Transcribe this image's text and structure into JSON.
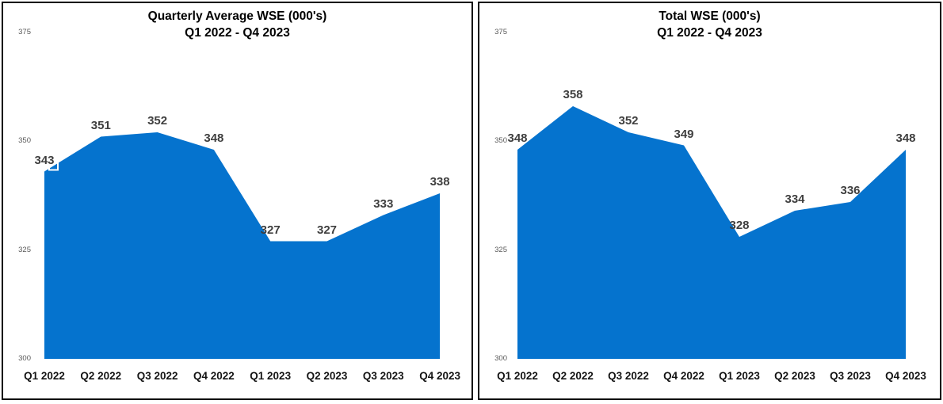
{
  "chart_data": [
    {
      "type": "area",
      "title": "Quarterly Average WSE (000's)",
      "subtitle": "Q1 2022 - Q4 2023",
      "categories": [
        "Q1 2022",
        "Q2 2022",
        "Q3 2022",
        "Q4 2022",
        "Q1 2023",
        "Q2 2023",
        "Q3 2023",
        "Q4 2023"
      ],
      "values": [
        343,
        351,
        352,
        348,
        327,
        327,
        333,
        338
      ],
      "ylim": [
        300,
        375
      ],
      "yticks": [
        375,
        350,
        325,
        300
      ],
      "grid": false,
      "legend": "none",
      "xlabel": "",
      "ylabel": "",
      "area_color": "#0573CE",
      "data_label_color": "#3F3F3F",
      "tick_label_color": "#595959",
      "selected_point_index": 0
    },
    {
      "type": "area",
      "title": "Total WSE (000's)",
      "subtitle": "Q1 2022 - Q4 2023",
      "categories": [
        "Q1 2022",
        "Q2 2022",
        "Q3 2022",
        "Q4 2022",
        "Q1 2023",
        "Q2 2023",
        "Q3 2023",
        "Q4 2023"
      ],
      "values": [
        348,
        358,
        352,
        349,
        328,
        334,
        336,
        348
      ],
      "ylim": [
        300,
        375
      ],
      "yticks": [
        375,
        350,
        325,
        300
      ],
      "grid": false,
      "legend": "none",
      "xlabel": "",
      "ylabel": "",
      "area_color": "#0573CE",
      "data_label_color": "#3F3F3F",
      "tick_label_color": "#595959",
      "selected_point_index": null
    }
  ]
}
